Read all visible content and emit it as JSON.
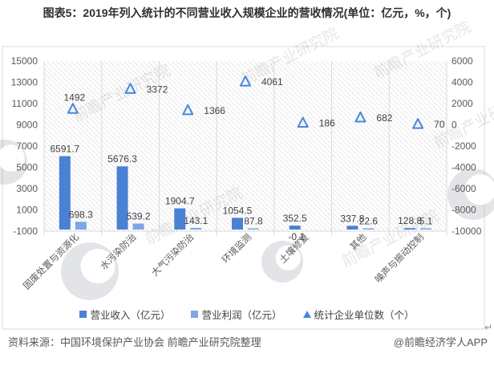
{
  "title": "图表5：2019年列入统计的不同营业收入规模企业的营收情况(单位：亿元，%，个)",
  "source": {
    "left": "资料来源：中国环境保护产业协会 前瞻产业研究院整理",
    "right": "@前瞻经济学人APP"
  },
  "watermark": {
    "text": "前瞻产业研究院"
  },
  "return_mark": "↵",
  "colors": {
    "revenue_bar": "#4a81d4",
    "profit_bar": "#7ca6e4",
    "triangle_stroke": "#4a86d8",
    "triangle_fill": "#eef5fd",
    "grid": "#d9d9d9",
    "axis_text": "#595959",
    "label_text": "#3f3f3f",
    "hatch_line": "#e7e7e7"
  },
  "chart_data": {
    "type": "combo",
    "title": "图表5：2019年列入统计的不同营业收入规模企业的营收情况(单位：亿元，%，个)",
    "categories": [
      "固废处置与资源化",
      "水污染防治",
      "大气污染防治",
      "环境监测",
      "土壤修复",
      "其他",
      "噪声与振动控制"
    ],
    "series": [
      {
        "name": "营业收入（亿元）",
        "type": "bar",
        "axis": "left",
        "values": [
          6591.7,
          5676.3,
          1904.7,
          1054.5,
          352.5,
          337.8,
          128.8
        ]
      },
      {
        "name": "营业利润（亿元）",
        "type": "bar",
        "axis": "left",
        "values": [
          698.3,
          539.2,
          143.1,
          87.8,
          -0.1,
          22.6,
          5.1
        ]
      },
      {
        "name": "统计企业单位数（个）",
        "type": "scatter-triangle",
        "axis": "right",
        "values": [
          1492,
          3372,
          1366,
          4061,
          186,
          682,
          70
        ]
      }
    ],
    "left_axis": {
      "min": -1000,
      "max": 15000,
      "ticks": [
        "15000",
        "13000",
        "11000",
        "9000",
        "7000",
        "5000",
        "3000",
        "1000",
        "-1000"
      ]
    },
    "right_axis": {
      "min": -10000,
      "max": 6000,
      "ticks": [
        "6000",
        "4000",
        "2000",
        "0",
        "-2000",
        "-4000",
        "-6000",
        "-8000",
        "-10000"
      ]
    },
    "legend_position": "bottom",
    "grid": "vertical-category-lines",
    "plot_background": "diagonal-hatch"
  }
}
